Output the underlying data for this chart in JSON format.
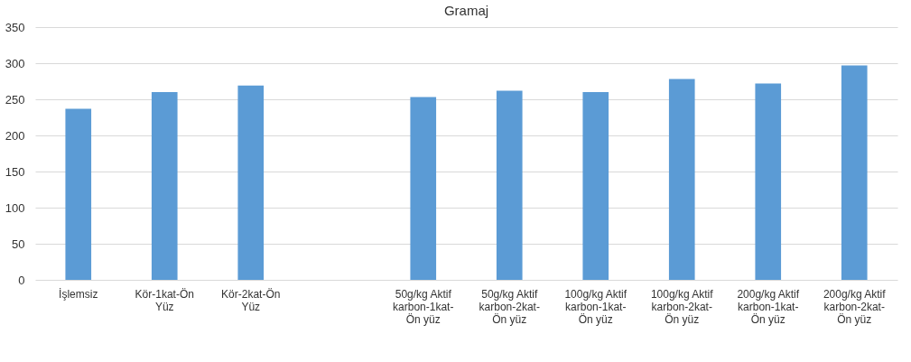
{
  "chart_data": {
    "type": "bar",
    "title": "Gramaj",
    "categories": [
      "İşlemsiz",
      "Kör-1kat-Ön Yüz",
      "Kör-2kat-Ön Yüz",
      null,
      "50g/kg Aktif karbon-1kat-Ön yüz",
      "50g/kg Aktif karbon-2kat-Ön yüz",
      "100g/kg Aktif karbon-1kat-Ön yüz",
      "100g/kg Aktif karbon-2kat-Ön yüz",
      "200g/kg Aktif karbon-1kat-Ön yüz",
      "200g/kg Aktif karbon-2kat-Ön yüz"
    ],
    "values": [
      237,
      260,
      269,
      null,
      253,
      262,
      260,
      278,
      272,
      297
    ],
    "color": "#5b9bd5",
    "ylim": [
      0,
      350
    ],
    "yticks": [
      0,
      50,
      100,
      150,
      200,
      250,
      300,
      350
    ],
    "grid": "y"
  }
}
